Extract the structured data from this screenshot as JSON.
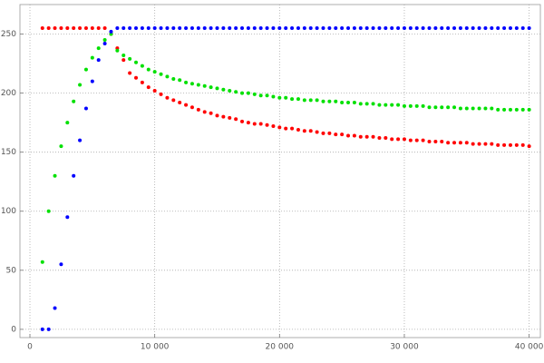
{
  "chart_data": {
    "type": "scatter",
    "x": [
      1000,
      1500,
      2000,
      2500,
      3000,
      3500,
      4000,
      4500,
      5000,
      5500,
      6000,
      6500,
      7000,
      7500,
      8000,
      8500,
      9000,
      9500,
      10000,
      10500,
      11000,
      11500,
      12000,
      12500,
      13000,
      13500,
      14000,
      14500,
      15000,
      15500,
      16000,
      16500,
      17000,
      17500,
      18000,
      18500,
      19000,
      19500,
      20000,
      20500,
      21000,
      21500,
      22000,
      22500,
      23000,
      23500,
      24000,
      24500,
      25000,
      25500,
      26000,
      26500,
      27000,
      27500,
      28000,
      28500,
      29000,
      29500,
      30000,
      30500,
      31000,
      31500,
      32000,
      32500,
      33000,
      33500,
      34000,
      34500,
      35000,
      35500,
      36000,
      36500,
      37000,
      37500,
      38000,
      38500,
      39000,
      39500,
      40000
    ],
    "series": [
      {
        "color": "#ff0000",
        "values": [
          255,
          255,
          255,
          255,
          255,
          255,
          255,
          255,
          255,
          255,
          255,
          250,
          238,
          228,
          217,
          213,
          209,
          205,
          202,
          199,
          196,
          194,
          192,
          190,
          188,
          186,
          184,
          183,
          181,
          180,
          179,
          178,
          176,
          175,
          174,
          174,
          173,
          172,
          171,
          170,
          170,
          169,
          168,
          168,
          167,
          166,
          166,
          165,
          165,
          164,
          164,
          163,
          163,
          163,
          162,
          162,
          161,
          161,
          161,
          160,
          160,
          160,
          159,
          159,
          159,
          158,
          158,
          158,
          158,
          157,
          157,
          157,
          157,
          156,
          156,
          156,
          156,
          156,
          155
        ]
      },
      {
        "color": "#00e000",
        "values": [
          57,
          100,
          130,
          155,
          175,
          193,
          207,
          220,
          230,
          238,
          245,
          250,
          236,
          232,
          229,
          226,
          223,
          220,
          218,
          216,
          214,
          212,
          211,
          209,
          208,
          207,
          206,
          205,
          204,
          203,
          202,
          201,
          200,
          200,
          199,
          198,
          198,
          197,
          196,
          196,
          195,
          195,
          194,
          194,
          194,
          193,
          193,
          193,
          192,
          192,
          192,
          191,
          191,
          191,
          190,
          190,
          190,
          190,
          189,
          189,
          189,
          189,
          188,
          188,
          188,
          188,
          188,
          187,
          187,
          187,
          187,
          187,
          187,
          186,
          186,
          186,
          186,
          186,
          186
        ]
      },
      {
        "color": "#0000ff",
        "values": [
          0,
          0,
          18,
          55,
          95,
          130,
          160,
          187,
          210,
          228,
          242,
          252,
          255,
          255,
          255,
          255,
          255,
          255,
          255,
          255,
          255,
          255,
          255,
          255,
          255,
          255,
          255,
          255,
          255,
          255,
          255,
          255,
          255,
          255,
          255,
          255,
          255,
          255,
          255,
          255,
          255,
          255,
          255,
          255,
          255,
          255,
          255,
          255,
          255,
          255,
          255,
          255,
          255,
          255,
          255,
          255,
          255,
          255,
          255,
          255,
          255,
          255,
          255,
          255,
          255,
          255,
          255,
          255,
          255,
          255,
          255,
          255,
          255,
          255,
          255,
          255,
          255,
          255,
          255
        ]
      }
    ],
    "xlim": [
      -800,
      40900
    ],
    "ylim": [
      -7,
      275
    ],
    "xticks": [
      0,
      {
        "value": 10000,
        "label": "10 000"
      },
      {
        "value": 20000,
        "label": "20 000"
      },
      {
        "value": 30000,
        "label": "30 000"
      },
      {
        "value": 40000,
        "label": "40 000"
      }
    ],
    "yticks": [
      0,
      50,
      100,
      150,
      200,
      250
    ],
    "grid": true
  }
}
